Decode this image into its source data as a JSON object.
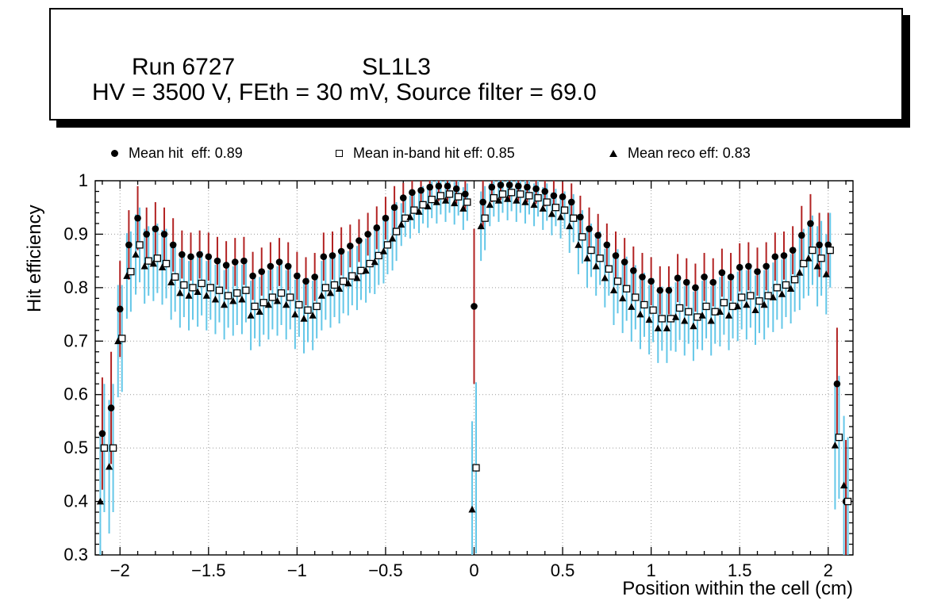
{
  "title_box": {
    "run": "Run 6727",
    "chamber": "SL1L3",
    "conditions": "HV = 3500 V, FEth = 30 mV, Source filter = 69.0"
  },
  "legend": {
    "entries": [
      {
        "marker": "filled-circle",
        "label": "Mean hit  eff: 0.89"
      },
      {
        "marker": "open-square",
        "label": "Mean in-band hit eff: 0.85"
      },
      {
        "marker": "filled-triangle",
        "label": "Mean reco eff: 0.83"
      }
    ]
  },
  "axes": {
    "x_title": "Position within the cell (cm)",
    "y_title": "Hit efficiency",
    "x_tick_values": [
      -2,
      -1.5,
      -1,
      -0.5,
      0,
      0.5,
      1,
      1.5,
      2
    ],
    "x_tick_labels": [
      "−2",
      "−1.5",
      "−1",
      "−0.5",
      "0",
      "0.5",
      "1",
      "1.5",
      "2"
    ],
    "y_tick_values": [
      0.3,
      0.4,
      0.5,
      0.6,
      0.7,
      0.8,
      0.9,
      1.0
    ],
    "y_tick_labels": [
      "0.3",
      "0.4",
      "0.5",
      "0.6",
      "0.7",
      "0.8",
      "0.9",
      "1"
    ]
  },
  "colors": {
    "marker": "#000000",
    "error_hit": "#b22222",
    "error_band": "#64c7e8",
    "grid": "#999999"
  },
  "chart_data": {
    "type": "scatter",
    "title": "Run 6727 SL1L3",
    "xlabel": "Position within the cell (cm)",
    "ylabel": "Hit efficiency",
    "xlim": [
      -2.14,
      2.14
    ],
    "ylim": [
      0.3,
      1.0
    ],
    "grid": true,
    "legend_position": "top",
    "x": [
      -2.1,
      -2.05,
      -2,
      -1.95,
      -1.9,
      -1.85,
      -1.8,
      -1.75,
      -1.7,
      -1.65,
      -1.6,
      -1.55,
      -1.5,
      -1.45,
      -1.4,
      -1.35,
      -1.3,
      -1.25,
      -1.2,
      -1.15,
      -1.1,
      -1.05,
      -1,
      -0.95,
      -0.9,
      -0.85,
      -0.8,
      -0.75,
      -0.7,
      -0.65,
      -0.6,
      -0.55,
      -0.5,
      -0.45,
      -0.4,
      -0.35,
      -0.3,
      -0.25,
      -0.2,
      -0.15,
      -0.1,
      -0.05,
      0,
      0.05,
      0.1,
      0.15,
      0.2,
      0.25,
      0.3,
      0.35,
      0.4,
      0.45,
      0.5,
      0.55,
      0.6,
      0.65,
      0.7,
      0.75,
      0.8,
      0.85,
      0.9,
      0.95,
      1,
      1.05,
      1.1,
      1.15,
      1.2,
      1.25,
      1.3,
      1.35,
      1.4,
      1.45,
      1.5,
      1.55,
      1.6,
      1.65,
      1.7,
      1.75,
      1.8,
      1.85,
      1.9,
      1.95,
      2,
      2.05,
      2.1
    ],
    "series": [
      {
        "name": "Mean hit eff",
        "mean": 0.89,
        "marker": "filled-circle",
        "marker_color": "#000000",
        "error_color": "#b22222",
        "values": [
          0.527,
          0.575,
          0.76,
          0.88,
          0.93,
          0.9,
          0.91,
          0.9,
          0.88,
          0.862,
          0.858,
          0.862,
          0.858,
          0.85,
          0.842,
          0.848,
          0.85,
          0.822,
          0.83,
          0.84,
          0.848,
          0.84,
          0.822,
          0.812,
          0.82,
          0.858,
          0.86,
          0.868,
          0.878,
          0.888,
          0.9,
          0.912,
          0.93,
          0.95,
          0.968,
          0.978,
          0.982,
          0.988,
          0.99,
          0.99,
          0.985,
          0.975,
          0.765,
          0.96,
          0.988,
          0.992,
          0.992,
          0.99,
          0.988,
          0.985,
          0.98,
          0.972,
          0.97,
          0.96,
          0.932,
          0.91,
          0.898,
          0.88,
          0.86,
          0.848,
          0.832,
          0.82,
          0.812,
          0.795,
          0.795,
          0.818,
          0.81,
          0.8,
          0.82,
          0.81,
          0.828,
          0.82,
          0.838,
          0.84,
          0.83,
          0.84,
          0.858,
          0.86,
          0.87,
          0.898,
          0.92,
          0.88,
          0.88,
          0.62,
          0.4
        ],
        "errors": [
          0.105,
          0.105,
          0.09,
          0.065,
          0.06,
          0.05,
          0.05,
          0.05,
          0.05,
          0.045,
          0.045,
          0.045,
          0.045,
          0.045,
          0.045,
          0.045,
          0.045,
          0.045,
          0.045,
          0.045,
          0.045,
          0.045,
          0.045,
          0.045,
          0.045,
          0.045,
          0.045,
          0.045,
          0.04,
          0.04,
          0.04,
          0.04,
          0.04,
          0.04,
          0.028,
          0.028,
          0.028,
          0.028,
          0.028,
          0.028,
          0.028,
          0.028,
          0.145,
          0.05,
          0.028,
          0.028,
          0.028,
          0.028,
          0.028,
          0.028,
          0.028,
          0.028,
          0.028,
          0.035,
          0.04,
          0.04,
          0.04,
          0.04,
          0.045,
          0.045,
          0.045,
          0.045,
          0.045,
          0.045,
          0.045,
          0.045,
          0.045,
          0.045,
          0.045,
          0.045,
          0.045,
          0.045,
          0.045,
          0.045,
          0.045,
          0.045,
          0.045,
          0.045,
          0.045,
          0.055,
          0.055,
          0.06,
          0.06,
          0.105,
          0.115
        ]
      },
      {
        "name": "Mean in-band hit eff",
        "mean": 0.85,
        "marker": "open-square",
        "marker_color": "#000000",
        "error_color": "#64c7e8",
        "values": [
          0.5,
          0.5,
          0.705,
          0.83,
          0.88,
          0.85,
          0.855,
          0.845,
          0.82,
          0.805,
          0.8,
          0.808,
          0.8,
          0.795,
          0.785,
          0.79,
          0.795,
          0.765,
          0.772,
          0.782,
          0.79,
          0.782,
          0.768,
          0.758,
          0.765,
          0.8,
          0.805,
          0.812,
          0.822,
          0.832,
          0.845,
          0.86,
          0.88,
          0.905,
          0.93,
          0.945,
          0.955,
          0.965,
          0.972,
          0.975,
          0.97,
          0.96,
          0.463,
          0.93,
          0.968,
          0.975,
          0.978,
          0.975,
          0.972,
          0.968,
          0.96,
          0.95,
          0.945,
          0.93,
          0.895,
          0.87,
          0.855,
          0.835,
          0.812,
          0.798,
          0.782,
          0.768,
          0.758,
          0.742,
          0.742,
          0.762,
          0.755,
          0.745,
          0.765,
          0.755,
          0.772,
          0.765,
          0.782,
          0.785,
          0.775,
          0.785,
          0.8,
          0.805,
          0.815,
          0.845,
          0.87,
          0.855,
          0.87,
          0.52,
          0.4
        ],
        "errors": [
          0.12,
          0.12,
          0.1,
          0.075,
          0.07,
          0.065,
          0.065,
          0.065,
          0.065,
          0.06,
          0.06,
          0.06,
          0.06,
          0.06,
          0.06,
          0.06,
          0.06,
          0.06,
          0.06,
          0.06,
          0.06,
          0.06,
          0.06,
          0.06,
          0.06,
          0.06,
          0.06,
          0.06,
          0.055,
          0.055,
          0.055,
          0.055,
          0.055,
          0.055,
          0.035,
          0.035,
          0.035,
          0.035,
          0.035,
          0.035,
          0.035,
          0.035,
          0.16,
          0.06,
          0.035,
          0.035,
          0.035,
          0.035,
          0.035,
          0.035,
          0.035,
          0.035,
          0.035,
          0.045,
          0.05,
          0.05,
          0.05,
          0.05,
          0.06,
          0.06,
          0.06,
          0.06,
          0.06,
          0.06,
          0.06,
          0.06,
          0.06,
          0.06,
          0.06,
          0.06,
          0.06,
          0.06,
          0.06,
          0.06,
          0.06,
          0.06,
          0.06,
          0.06,
          0.06,
          0.065,
          0.065,
          0.07,
          0.07,
          0.115,
          0.12
        ]
      },
      {
        "name": "Mean reco eff",
        "mean": 0.83,
        "marker": "filled-triangle",
        "marker_color": "#000000",
        "error_color": "#64c7e8",
        "values": [
          0.4,
          0.465,
          0.7,
          0.822,
          0.862,
          0.84,
          0.845,
          0.838,
          0.81,
          0.79,
          0.785,
          0.792,
          0.785,
          0.778,
          0.768,
          0.775,
          0.778,
          0.748,
          0.755,
          0.768,
          0.775,
          0.768,
          0.75,
          0.742,
          0.748,
          0.785,
          0.79,
          0.798,
          0.808,
          0.818,
          0.832,
          0.848,
          0.868,
          0.892,
          0.918,
          0.932,
          0.942,
          0.952,
          0.96,
          0.963,
          0.958,
          0.948,
          0.385,
          0.915,
          0.955,
          0.963,
          0.966,
          0.963,
          0.96,
          0.955,
          0.948,
          0.938,
          0.932,
          0.915,
          0.88,
          0.855,
          0.84,
          0.818,
          0.795,
          0.78,
          0.764,
          0.75,
          0.74,
          0.724,
          0.724,
          0.745,
          0.738,
          0.728,
          0.748,
          0.738,
          0.755,
          0.748,
          0.765,
          0.768,
          0.758,
          0.768,
          0.782,
          0.788,
          0.798,
          0.828,
          0.855,
          0.84,
          0.825,
          0.505,
          0.43
        ],
        "errors": [
          0.125,
          0.125,
          0.105,
          0.08,
          0.075,
          0.07,
          0.07,
          0.07,
          0.07,
          0.065,
          0.065,
          0.065,
          0.065,
          0.065,
          0.065,
          0.065,
          0.065,
          0.065,
          0.065,
          0.065,
          0.065,
          0.065,
          0.065,
          0.065,
          0.065,
          0.065,
          0.065,
          0.065,
          0.06,
          0.06,
          0.06,
          0.06,
          0.06,
          0.06,
          0.04,
          0.04,
          0.04,
          0.04,
          0.04,
          0.04,
          0.04,
          0.04,
          0.165,
          0.065,
          0.04,
          0.04,
          0.04,
          0.04,
          0.04,
          0.04,
          0.04,
          0.04,
          0.04,
          0.05,
          0.055,
          0.055,
          0.055,
          0.055,
          0.065,
          0.065,
          0.065,
          0.065,
          0.065,
          0.065,
          0.065,
          0.065,
          0.065,
          0.065,
          0.065,
          0.065,
          0.065,
          0.065,
          0.065,
          0.065,
          0.065,
          0.065,
          0.065,
          0.065,
          0.065,
          0.07,
          0.07,
          0.075,
          0.075,
          0.12,
          0.13
        ]
      }
    ]
  }
}
